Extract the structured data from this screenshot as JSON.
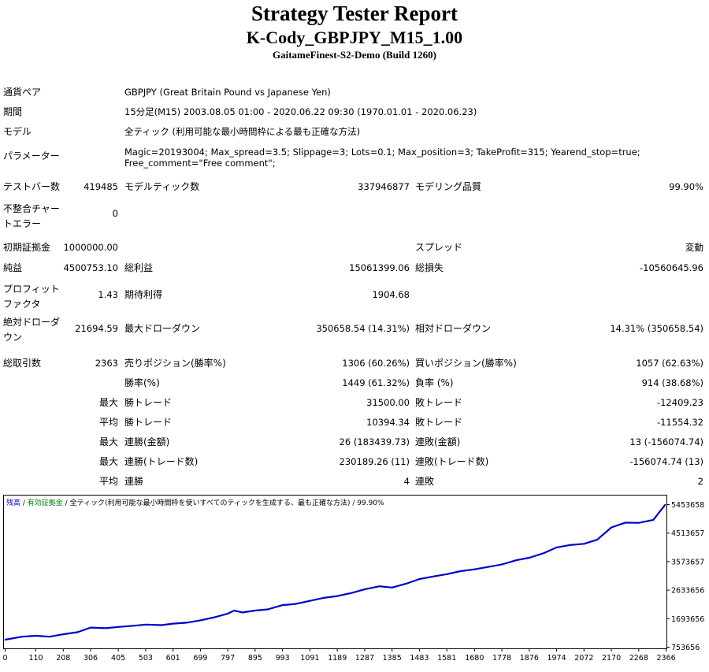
{
  "header": {
    "title": "Strategy Tester Report",
    "subtitle": "K-Cody_GBPJPY_M15_1.00",
    "server": "GaitameFinest-S2-Demo (Build 1260)"
  },
  "info": {
    "symbol_label": "通貨ペア",
    "symbol_value": "GBPJPY (Great Britain Pound vs Japanese Yen)",
    "period_label": "期間",
    "period_value": "15分足(M15) 2003.08.05 01:00 - 2020.06.22 09:30 (1970.01.01 - 2020.06.23)",
    "model_label": "モデル",
    "model_value": "全ティック (利用可能な最小時間枠による最も正確な方法)",
    "params_label": "パラメーター",
    "params_value": "Magic=20193004; Max_spread=3.5; Slippage=3; Lots=0.1; Max_position=3; TakeProfit=315; Yearend_stop=true; Free_comment=\"Free comment\";"
  },
  "stats": {
    "bars_label": "テストバー数",
    "bars_value": "419485",
    "ticks_label": "モデルティック数",
    "ticks_value": "337946877",
    "quality_label": "モデリング品質",
    "quality_value": "99.90%",
    "mismatch_label": "不整合チャートエラー",
    "mismatch_value": "0",
    "deposit_label": "初期証拠金",
    "deposit_value": "1000000.00",
    "spread_label": "スプレッド",
    "spread_value": "変動",
    "net_label": "純益",
    "net_value": "4500753.10",
    "gross_profit_label": "総利益",
    "gross_profit_value": "15061399.06",
    "gross_loss_label": "総損失",
    "gross_loss_value": "-10560645.96",
    "pf_label": "プロフィットファクタ",
    "pf_value": "1.43",
    "expected_label": "期待利得",
    "expected_value": "1904.68",
    "abs_dd_label": "絶対ドローダウン",
    "abs_dd_value": "21694.59",
    "max_dd_label": "最大ドローダウン",
    "max_dd_value": "350658.54 (14.31%)",
    "rel_dd_label": "相対ドローダウン",
    "rel_dd_value": "14.31% (350658.54)",
    "total_trades_label": "総取引数",
    "total_trades_value": "2363",
    "short_label": "売りポジション(勝率%)",
    "short_value": "1306 (60.26%)",
    "long_label": "買いポジション(勝率%)",
    "long_value": "1057 (62.63%)",
    "win_rate_label": "勝率(%)",
    "win_rate_value": "1449 (61.32%)",
    "loss_rate_label": "負率 (%)",
    "loss_rate_value": "914 (38.68%)",
    "largest_label": "最大",
    "largest_win_label": "勝トレード",
    "largest_win_value": "31500.00",
    "largest_loss_label": "敗トレード",
    "largest_loss_value": "-12409.23",
    "average_label": "平均",
    "avg_win_label": "勝トレード",
    "avg_win_value": "10394.34",
    "avg_loss_label": "敗トレード",
    "avg_loss_value": "-11554.32",
    "max_label": "最大",
    "max_consec_wins_label": "連勝(金額)",
    "max_consec_wins_value": "26 (183439.73)",
    "max_consec_losses_label": "連敗(金額)",
    "max_consec_losses_value": "13 (-156074.74)",
    "max2_label": "最大",
    "max_consec_profit_label": "連勝(トレード数)",
    "max_consec_profit_value": "230189.26 (11)",
    "max_consec_loss_label": "連敗(トレード数)",
    "max_consec_loss_value": "-156074.74 (13)",
    "avg2_label": "平均",
    "avg_consec_wins_label": "連勝",
    "avg_consec_wins_value": "4",
    "avg_consec_losses_label": "連敗",
    "avg_consec_losses_value": "2"
  },
  "colors": {
    "balance": "#0000cc",
    "equity": "#008000",
    "text": "#000000",
    "grid": "#808080"
  },
  "chart_data": {
    "type": "line",
    "legend": {
      "balance": "残高",
      "sep1": " / ",
      "equity": "有効証拠金",
      "sep2": " / ",
      "model": "全ティック(利用可能な最小時間枠を使いすべてのティックを生成する、最も正確な方法)",
      "sep3": " / ",
      "quality": "99.90%"
    },
    "x_ticks": [
      "0",
      "110",
      "208",
      "306",
      "405",
      "503",
      "601",
      "699",
      "797",
      "895",
      "993",
      "1091",
      "1189",
      "1287",
      "1385",
      "1483",
      "1581",
      "1680",
      "1778",
      "1876",
      "1974",
      "2072",
      "2170",
      "2268",
      "2366"
    ],
    "y_ticks": [
      "5453658",
      "4513657",
      "3573657",
      "2633656",
      "1693656",
      "753656"
    ],
    "xlim": [
      0,
      2363
    ],
    "ylim": [
      753656,
      5453658
    ],
    "series": [
      {
        "name": "残高",
        "x": [
          0,
          60,
          110,
          160,
          208,
          260,
          306,
          360,
          405,
          460,
          503,
          560,
          601,
          650,
          699,
          750,
          797,
          820,
          850,
          895,
          940,
          993,
          1040,
          1091,
          1140,
          1189,
          1240,
          1287,
          1340,
          1385,
          1440,
          1483,
          1530,
          1581,
          1630,
          1680,
          1730,
          1778,
          1830,
          1876,
          1930,
          1974,
          2020,
          2072,
          2120,
          2170,
          2220,
          2268,
          2320,
          2363
        ],
        "y": [
          1000000,
          1100000,
          1130000,
          1100000,
          1180000,
          1250000,
          1400000,
          1380000,
          1420000,
          1460000,
          1500000,
          1480000,
          1530000,
          1560000,
          1640000,
          1740000,
          1860000,
          1960000,
          1900000,
          1960000,
          2000000,
          2140000,
          2180000,
          2280000,
          2380000,
          2440000,
          2540000,
          2660000,
          2760000,
          2720000,
          2860000,
          3000000,
          3080000,
          3160000,
          3260000,
          3320000,
          3400000,
          3480000,
          3620000,
          3700000,
          3860000,
          4040000,
          4120000,
          4160000,
          4300000,
          4700000,
          4860000,
          4850000,
          4950000,
          5450000
        ]
      }
    ]
  }
}
